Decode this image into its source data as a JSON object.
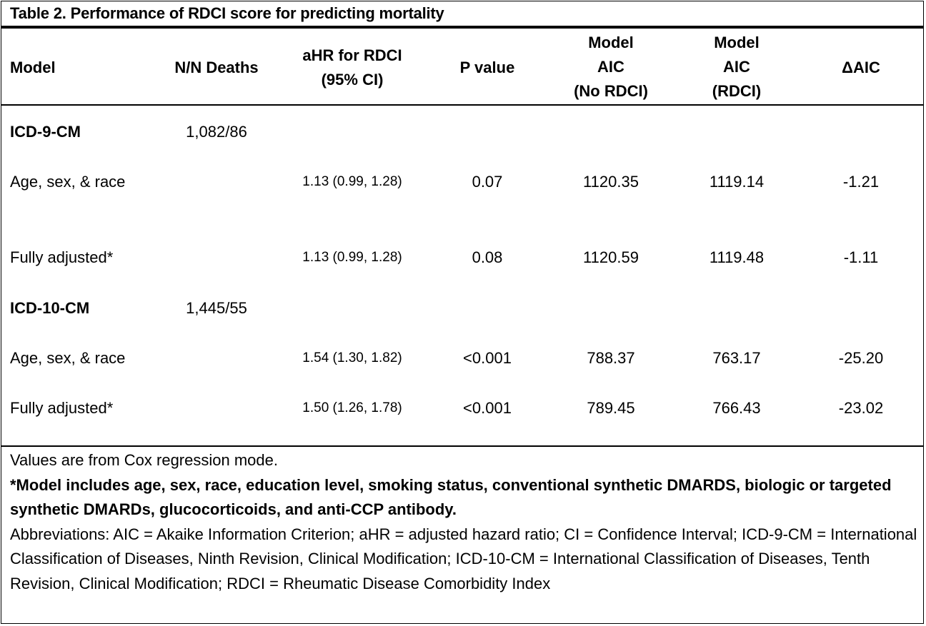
{
  "title": "Table 2. Performance of RDCI score for predicting mortality",
  "headers": {
    "model": "Model",
    "n_deaths": "N/N Deaths",
    "ahr_line1": "aHR for RDCI",
    "ahr_line2": "(95% CI)",
    "pvalue": "P value",
    "aic_no_line1": "Model",
    "aic_no_line2": "AIC",
    "aic_no_line3": "(No RDCI)",
    "aic_rdci_line1": "Model",
    "aic_rdci_line2": "AIC",
    "aic_rdci_line3": "(RDCI)",
    "delta_aic": "ΔAIC"
  },
  "groups": [
    {
      "name": "ICD-9-CM",
      "n_deaths": "1,082/86",
      "rows": [
        {
          "model": "Age, sex, & race",
          "ahr": "1.13 (0.99, 1.28)",
          "p": "0.07",
          "aic_no": "1120.35",
          "aic_rdci": "1119.14",
          "delta": "-1.21"
        },
        {
          "model": "Fully adjusted*",
          "ahr": "1.13 (0.99, 1.28)",
          "p": "0.08",
          "aic_no": "1120.59",
          "aic_rdci": "1119.48",
          "delta": "-1.11"
        }
      ]
    },
    {
      "name": "ICD-10-CM",
      "n_deaths": "1,445/55",
      "rows": [
        {
          "model": "Age, sex, & race",
          "ahr": "1.54 (1.30, 1.82)",
          "p": "<0.001",
          "aic_no": "788.37",
          "aic_rdci": "763.17",
          "delta": "-25.20"
        },
        {
          "model": "Fully adjusted*",
          "ahr": "1.50 (1.26, 1.78)",
          "p": "<0.001",
          "aic_no": "789.45",
          "aic_rdci": "766.43",
          "delta": "-23.02"
        }
      ]
    }
  ],
  "notes": {
    "line1": "Values are from Cox regression mode.",
    "line2": "*Model includes age, sex, race, education level, smoking status, conventional synthetic DMARDS, biologic or targeted synthetic DMARDs, glucocorticoids, and anti-CCP antibody.",
    "line3": "Abbreviations: AIC = Akaike Information Criterion; aHR = adjusted hazard ratio; CI = Confidence Interval; ICD-9-CM = International Classification of Diseases, Ninth Revision, Clinical Modification; ICD-10-CM = International Classification of Diseases, Tenth Revision, Clinical Modification; RDCI = Rheumatic Disease Comorbidity Index"
  }
}
